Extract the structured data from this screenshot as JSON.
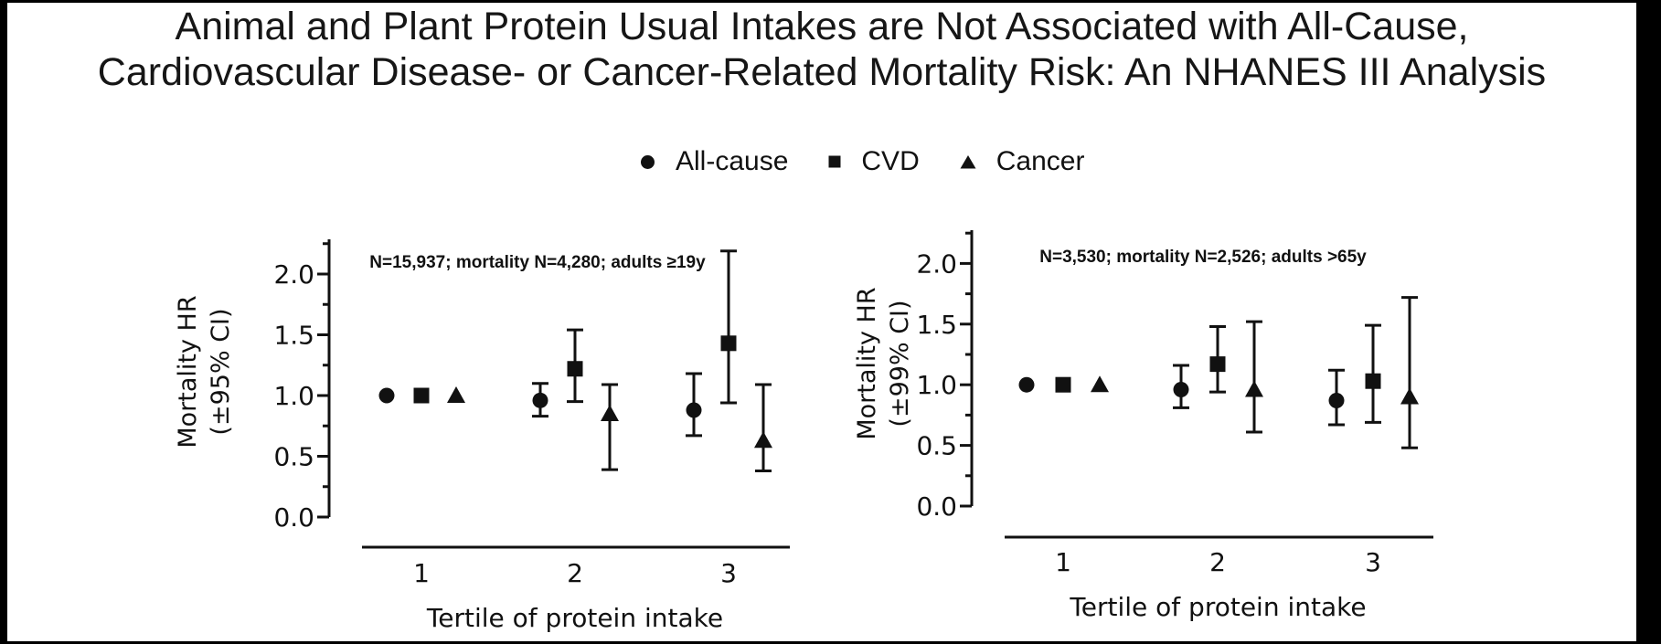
{
  "title": {
    "line1": "Animal and Plant Protein Usual Intakes are Not Associated with All-Cause,",
    "line2": "Cardiovascular Disease- or Cancer-Related Mortality Risk: An NHANES III Analysis"
  },
  "legend": {
    "items": [
      {
        "marker": "circle",
        "label": "All-cause"
      },
      {
        "marker": "square",
        "label": "CVD"
      },
      {
        "marker": "triangle",
        "label": "Cancer"
      }
    ]
  },
  "colors": {
    "ink": "#111111",
    "background": "#ffffff",
    "edge_bars": "#000000"
  },
  "chart_data": [
    {
      "type": "scatter",
      "panel": "left",
      "annotation": "N=15,937; mortality N=4,280; adults ≥19y",
      "ylabel_line1": "Mortality HR",
      "ylabel_line2": "(±95% CI)",
      "xlabel": "Tertile of protein intake",
      "x_categories": [
        "1",
        "2",
        "3"
      ],
      "ylim": [
        0.0,
        2.28
      ],
      "yticks": [
        0.0,
        0.5,
        1.0,
        1.5,
        2.0
      ],
      "ytick_labels": [
        "0.0",
        "0.5",
        "1.0",
        "1.5",
        "2.0"
      ],
      "minor_tick_step": 0.25,
      "legend_position": "top-center-shared",
      "grid": false,
      "series": [
        {
          "name": "All-cause",
          "marker": "circle",
          "points": [
            {
              "tertile": 1,
              "hr": 1.0,
              "lo": null,
              "hi": null
            },
            {
              "tertile": 2,
              "hr": 0.96,
              "lo": 0.83,
              "hi": 1.1
            },
            {
              "tertile": 3,
              "hr": 0.88,
              "lo": 0.67,
              "hi": 1.18
            }
          ]
        },
        {
          "name": "CVD",
          "marker": "square",
          "points": [
            {
              "tertile": 1,
              "hr": 1.0,
              "lo": null,
              "hi": null
            },
            {
              "tertile": 2,
              "hr": 1.22,
              "lo": 0.95,
              "hi": 1.54
            },
            {
              "tertile": 3,
              "hr": 1.43,
              "lo": 0.94,
              "hi": 2.19
            }
          ]
        },
        {
          "name": "Cancer",
          "marker": "triangle",
          "points": [
            {
              "tertile": 1,
              "hr": 1.0,
              "lo": null,
              "hi": null
            },
            {
              "tertile": 2,
              "hr": 0.85,
              "lo": 0.39,
              "hi": 1.09
            },
            {
              "tertile": 3,
              "hr": 0.63,
              "lo": 0.38,
              "hi": 1.09
            }
          ]
        }
      ]
    },
    {
      "type": "scatter",
      "panel": "right",
      "annotation": "N=3,530; mortality N=2,526; adults >65y",
      "ylabel_line1": "Mortality HR",
      "ylabel_line2": "(±99% CI)",
      "xlabel": "Tertile of protein intake",
      "x_categories": [
        "1",
        "2",
        "3"
      ],
      "ylim": [
        0.0,
        2.28
      ],
      "yticks": [
        0.0,
        0.5,
        1.0,
        1.5,
        2.0
      ],
      "ytick_labels": [
        "0.0",
        "0.5",
        "1.0",
        "1.5",
        "2.0"
      ],
      "minor_tick_step": 0.25,
      "legend_position": "top-center-shared",
      "grid": false,
      "series": [
        {
          "name": "All-cause",
          "marker": "circle",
          "points": [
            {
              "tertile": 1,
              "hr": 1.0,
              "lo": null,
              "hi": null
            },
            {
              "tertile": 2,
              "hr": 0.96,
              "lo": 0.81,
              "hi": 1.16
            },
            {
              "tertile": 3,
              "hr": 0.87,
              "lo": 0.67,
              "hi": 1.12
            }
          ]
        },
        {
          "name": "CVD",
          "marker": "square",
          "points": [
            {
              "tertile": 1,
              "hr": 1.0,
              "lo": null,
              "hi": null
            },
            {
              "tertile": 2,
              "hr": 1.17,
              "lo": 0.94,
              "hi": 1.48
            },
            {
              "tertile": 3,
              "hr": 1.03,
              "lo": 0.69,
              "hi": 1.49
            }
          ]
        },
        {
          "name": "Cancer",
          "marker": "triangle",
          "points": [
            {
              "tertile": 1,
              "hr": 1.0,
              "lo": null,
              "hi": null
            },
            {
              "tertile": 2,
              "hr": 0.96,
              "lo": 0.61,
              "hi": 1.52
            },
            {
              "tertile": 3,
              "hr": 0.9,
              "lo": 0.48,
              "hi": 1.72
            }
          ]
        }
      ]
    }
  ]
}
